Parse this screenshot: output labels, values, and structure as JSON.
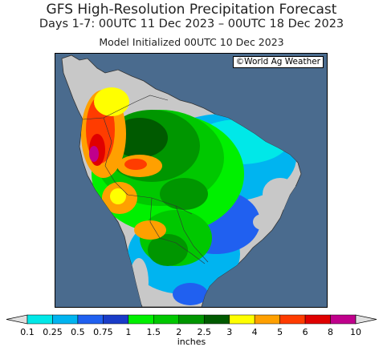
{
  "header": {
    "title": "GFS High-Resolution Precipitation Forecast",
    "period": "Days 1-7: 00UTC 11 Dec 2023 – 00UTC 18 Dec 2023",
    "init": "Model Initialized 00UTC 10 Dec 2023"
  },
  "map": {
    "credit": "©World Ag Weather",
    "region": "South America",
    "colors": {
      "ocean": "#4a6b8e",
      "dry_land": "#c8c8c8"
    }
  },
  "legend": {
    "units": "inches",
    "min_color": "#e0e0e0",
    "max_color": "#e0e0e0",
    "bins": [
      {
        "label": "0.1",
        "color": "#00e8e8"
      },
      {
        "label": "0.25",
        "color": "#00b4f0"
      },
      {
        "label": "0.5",
        "color": "#2060f0"
      },
      {
        "label": "0.75",
        "color": "#1a3cc8"
      },
      {
        "label": "1",
        "color": "#00f000"
      },
      {
        "label": "1.5",
        "color": "#00c800"
      },
      {
        "label": "2",
        "color": "#009600"
      },
      {
        "label": "2.5",
        "color": "#005a00"
      },
      {
        "label": "3",
        "color": "#ffff00"
      },
      {
        "label": "4",
        "color": "#ffa000"
      },
      {
        "label": "5",
        "color": "#ff3c00"
      },
      {
        "label": "6",
        "color": "#e00000"
      },
      {
        "label": "8",
        "color": "#c0008c"
      },
      {
        "label": "10",
        "color": "#a000d8"
      }
    ]
  }
}
